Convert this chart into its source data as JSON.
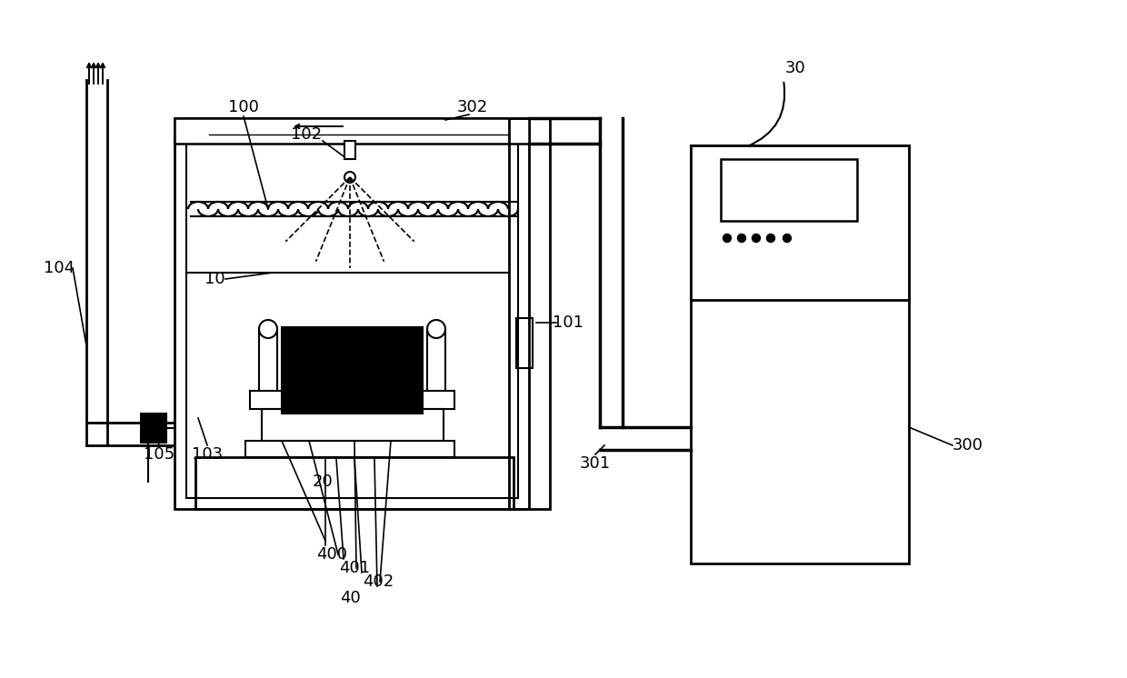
{
  "bg_color": "#ffffff",
  "lc": "#000000",
  "figsize": [
    12.4,
    7.46
  ],
  "dpi": 100
}
